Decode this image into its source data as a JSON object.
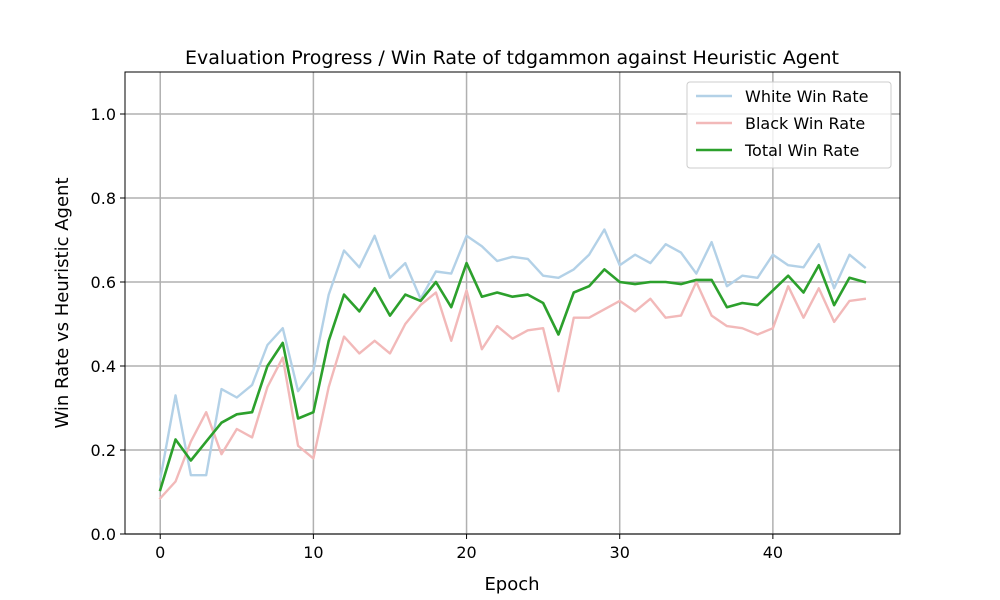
{
  "chart_data": {
    "type": "line",
    "title": "Evaluation Progress / Win Rate of tdgammon against Heuristic Agent",
    "xlabel": "Epoch",
    "ylabel": "Win Rate vs Heuristic Agent",
    "xlim": [
      -2.3,
      48.3
    ],
    "ylim": [
      0,
      1.1
    ],
    "xticks": [
      0,
      10,
      20,
      30,
      40
    ],
    "xtick_labels": [
      "0",
      "10",
      "20",
      "30",
      "40"
    ],
    "yticks": [
      0.0,
      0.2,
      0.4,
      0.6,
      0.8,
      1.0
    ],
    "ytick_labels": [
      "0.0",
      "0.2",
      "0.4",
      "0.6",
      "0.8",
      "1.0"
    ],
    "grid": true,
    "legend_position": "top-right",
    "x": [
      0,
      1,
      2,
      3,
      4,
      5,
      6,
      7,
      8,
      9,
      10,
      11,
      12,
      13,
      14,
      15,
      16,
      17,
      18,
      19,
      20,
      21,
      22,
      23,
      24,
      25,
      26,
      27,
      28,
      29,
      30,
      31,
      32,
      33,
      34,
      35,
      36,
      37,
      38,
      39,
      40,
      41,
      42,
      43,
      44,
      45,
      46
    ],
    "series": [
      {
        "name": "White Win Rate",
        "color": "#b3d1e7",
        "values": [
          0.13,
          0.33,
          0.14,
          0.14,
          0.345,
          0.325,
          0.355,
          0.45,
          0.49,
          0.34,
          0.39,
          0.57,
          0.675,
          0.635,
          0.71,
          0.61,
          0.645,
          0.56,
          0.625,
          0.62,
          0.71,
          0.685,
          0.65,
          0.66,
          0.655,
          0.615,
          0.61,
          0.63,
          0.665,
          0.725,
          0.64,
          0.665,
          0.645,
          0.69,
          0.67,
          0.62,
          0.695,
          0.59,
          0.615,
          0.61,
          0.665,
          0.64,
          0.635,
          0.69,
          0.585,
          0.665,
          0.635
        ]
      },
      {
        "name": "Black Win Rate",
        "color": "#f2b9b9",
        "values": [
          0.085,
          0.125,
          0.22,
          0.29,
          0.19,
          0.25,
          0.23,
          0.35,
          0.42,
          0.21,
          0.18,
          0.35,
          0.47,
          0.43,
          0.46,
          0.43,
          0.5,
          0.545,
          0.575,
          0.46,
          0.58,
          0.44,
          0.495,
          0.465,
          0.485,
          0.49,
          0.34,
          0.515,
          0.515,
          0.535,
          0.555,
          0.53,
          0.56,
          0.515,
          0.52,
          0.6,
          0.52,
          0.495,
          0.49,
          0.475,
          0.49,
          0.59,
          0.515,
          0.585,
          0.505,
          0.555,
          0.56
        ]
      },
      {
        "name": "Total Win Rate",
        "color": "#2ca02c",
        "values": [
          0.105,
          0.225,
          0.175,
          0.22,
          0.265,
          0.285,
          0.29,
          0.4,
          0.455,
          0.275,
          0.29,
          0.46,
          0.57,
          0.53,
          0.585,
          0.52,
          0.57,
          0.555,
          0.6,
          0.54,
          0.645,
          0.565,
          0.575,
          0.565,
          0.57,
          0.55,
          0.475,
          0.575,
          0.59,
          0.63,
          0.6,
          0.595,
          0.6,
          0.6,
          0.595,
          0.605,
          0.605,
          0.54,
          0.55,
          0.545,
          0.58,
          0.615,
          0.575,
          0.64,
          0.545,
          0.61,
          0.6
        ]
      }
    ]
  }
}
